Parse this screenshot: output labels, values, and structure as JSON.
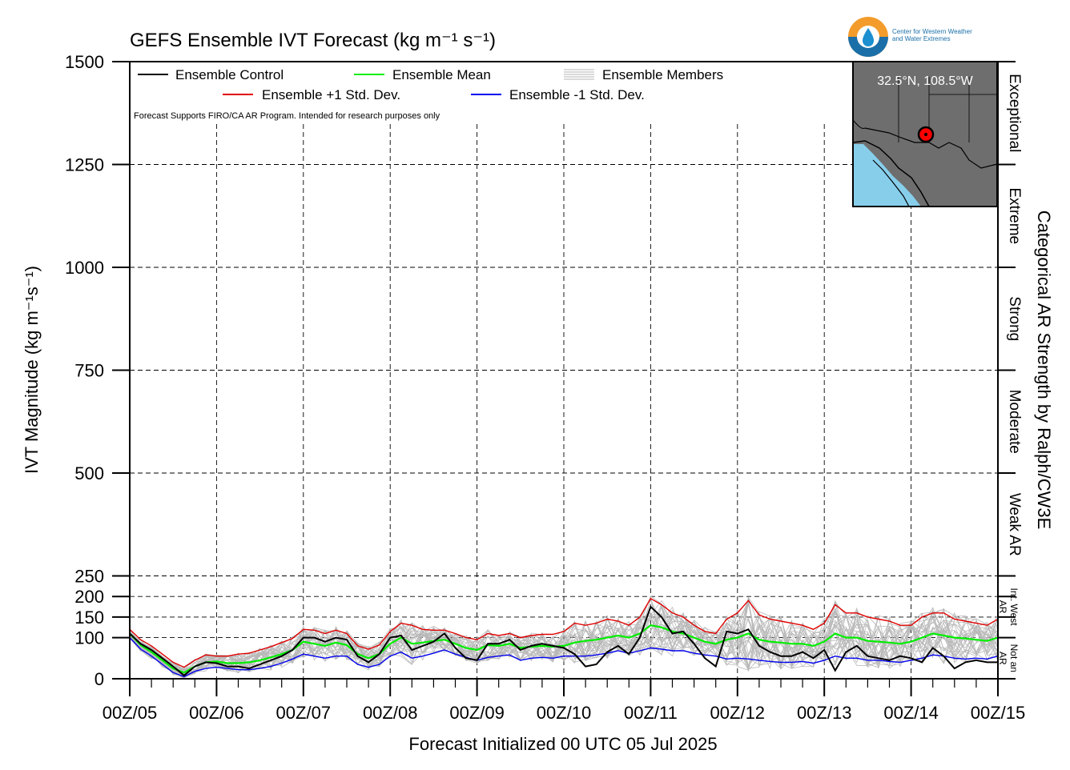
{
  "chart_data": {
    "type": "line",
    "title": "GEFS Ensemble IVT Forecast (kg m⁻¹ s⁻¹)",
    "xlabel": "Forecast Initialized 00 UTC 05 Jul 2025",
    "ylabel": "IVT Magnitude (kg m⁻¹s⁻¹)",
    "right_label": "Categorical AR Strength by Ralph/CW3E",
    "ylim": [
      0,
      1500
    ],
    "xlim_days": [
      5,
      15
    ],
    "grid": true,
    "y_ticks": [
      0,
      100,
      150,
      200,
      250,
      500,
      750,
      1000,
      1250,
      1500
    ],
    "y_tick_labels": [
      "0",
      "100",
      "150",
      "200",
      "250",
      "500",
      "750",
      "1000",
      "1250",
      "1500"
    ],
    "x_ticks": [
      5,
      6,
      7,
      8,
      9,
      10,
      11,
      12,
      13,
      14,
      15
    ],
    "x_tick_labels": [
      "00Z/05",
      "00Z/06",
      "00Z/07",
      "00Z/08",
      "00Z/09",
      "00Z/10",
      "00Z/11",
      "00Z/12",
      "00Z/13",
      "00Z/14",
      "00Z/15"
    ],
    "categories": [
      {
        "label": "Exceptional",
        "from": 1250,
        "to": 1500
      },
      {
        "label": "Extreme",
        "from": 1000,
        "to": 1250
      },
      {
        "label": "Strong",
        "from": 750,
        "to": 1000
      },
      {
        "label": "Moderate",
        "from": 500,
        "to": 750
      },
      {
        "label": "Weak AR",
        "from": 250,
        "to": 500
      },
      {
        "label": "Int. West AR",
        "from": 100,
        "to": 250
      },
      {
        "label": "Not an AR",
        "from": 0,
        "to": 100
      }
    ],
    "legend": {
      "placement": "top-left",
      "entries": [
        {
          "label": "Ensemble Control",
          "color": "#000000"
        },
        {
          "label": "Ensemble Mean",
          "color": "#00ee00"
        },
        {
          "label": "Ensemble Members",
          "color": "#aaaaaa"
        },
        {
          "label": "Ensemble +1 Std. Dev.",
          "color": "#e00000"
        },
        {
          "label": "Ensemble -1 Std. Dev.",
          "color": "#0000ee"
        }
      ]
    },
    "note": "Forecast Supports FIRO/CA AR Program. Intended for research purposes only",
    "series": [
      {
        "name": "Ensemble Control",
        "color": "#000000",
        "x": [
          5,
          5.125,
          5.25,
          5.375,
          5.5,
          5.625,
          5.75,
          5.875,
          6,
          6.125,
          6.25,
          6.375,
          6.5,
          6.625,
          6.75,
          6.875,
          7,
          7.125,
          7.25,
          7.375,
          7.5,
          7.625,
          7.75,
          7.875,
          8,
          8.125,
          8.25,
          8.375,
          8.5,
          8.625,
          8.75,
          8.875,
          9,
          9.125,
          9.25,
          9.375,
          9.5,
          9.625,
          9.75,
          9.875,
          10,
          10.125,
          10.25,
          10.375,
          10.5,
          10.625,
          10.75,
          10.875,
          11,
          11.125,
          11.25,
          11.375,
          11.5,
          11.625,
          11.75,
          11.875,
          12,
          12.125,
          12.25,
          12.375,
          12.5,
          12.625,
          12.75,
          12.875,
          13,
          13.125,
          13.25,
          13.375,
          13.5,
          13.625,
          13.75,
          13.875,
          14,
          14.125,
          14.25,
          14.375,
          14.5,
          14.625,
          14.75,
          14.875,
          15
        ],
        "values": [
          110,
          85,
          70,
          50,
          30,
          8,
          30,
          40,
          38,
          30,
          30,
          25,
          35,
          45,
          55,
          70,
          100,
          100,
          90,
          100,
          95,
          55,
          40,
          60,
          100,
          105,
          70,
          80,
          90,
          110,
          75,
          50,
          45,
          85,
          85,
          95,
          70,
          80,
          85,
          80,
          75,
          60,
          30,
          35,
          65,
          80,
          60,
          100,
          175,
          150,
          110,
          115,
          85,
          50,
          30,
          115,
          110,
          120,
          80,
          65,
          55,
          55,
          65,
          50,
          70,
          20,
          65,
          80,
          55,
          50,
          45,
          55,
          50,
          40,
          75,
          55,
          25,
          40,
          45,
          40,
          40
        ]
      },
      {
        "name": "Ensemble Mean",
        "color": "#00ee00",
        "x": [
          5,
          5.125,
          5.25,
          5.375,
          5.5,
          5.625,
          5.75,
          5.875,
          6,
          6.125,
          6.25,
          6.375,
          6.5,
          6.625,
          6.75,
          6.875,
          7,
          7.125,
          7.25,
          7.375,
          7.5,
          7.625,
          7.75,
          7.875,
          8,
          8.125,
          8.25,
          8.375,
          8.5,
          8.625,
          8.75,
          8.875,
          9,
          9.125,
          9.25,
          9.375,
          9.5,
          9.625,
          9.75,
          9.875,
          10,
          10.125,
          10.25,
          10.375,
          10.5,
          10.625,
          10.75,
          10.875,
          11,
          11.125,
          11.25,
          11.375,
          11.5,
          11.625,
          11.75,
          11.875,
          12,
          12.125,
          12.25,
          12.375,
          12.5,
          12.625,
          12.75,
          12.875,
          13,
          13.125,
          13.25,
          13.375,
          13.5,
          13.625,
          13.75,
          13.875,
          14,
          14.125,
          14.25,
          14.375,
          14.5,
          14.625,
          14.75,
          14.875,
          15
        ],
        "values": [
          110,
          82,
          65,
          45,
          25,
          15,
          30,
          40,
          42,
          38,
          38,
          40,
          45,
          52,
          60,
          70,
          90,
          85,
          80,
          88,
          82,
          60,
          50,
          60,
          85,
          100,
          85,
          88,
          92,
          95,
          85,
          75,
          70,
          82,
          80,
          85,
          75,
          78,
          80,
          78,
          80,
          88,
          92,
          95,
          100,
          105,
          100,
          110,
          130,
          125,
          115,
          110,
          100,
          90,
          85,
          95,
          100,
          110,
          95,
          90,
          88,
          85,
          85,
          80,
          90,
          110,
          100,
          100,
          92,
          90,
          88,
          85,
          90,
          100,
          110,
          105,
          100,
          98,
          95,
          92,
          100
        ]
      },
      {
        "name": "Ensemble +1 Std. Dev.",
        "color": "#e00000",
        "x": [
          5,
          5.125,
          5.25,
          5.375,
          5.5,
          5.625,
          5.75,
          5.875,
          6,
          6.125,
          6.25,
          6.375,
          6.5,
          6.625,
          6.75,
          6.875,
          7,
          7.125,
          7.25,
          7.375,
          7.5,
          7.625,
          7.75,
          7.875,
          8,
          8.125,
          8.25,
          8.375,
          8.5,
          8.625,
          8.75,
          8.875,
          9,
          9.125,
          9.25,
          9.375,
          9.5,
          9.625,
          9.75,
          9.875,
          10,
          10.125,
          10.25,
          10.375,
          10.5,
          10.625,
          10.75,
          10.875,
          11,
          11.125,
          11.25,
          11.375,
          11.5,
          11.625,
          11.75,
          11.875,
          12,
          12.125,
          12.25,
          12.375,
          12.5,
          12.625,
          12.75,
          12.875,
          13,
          13.125,
          13.25,
          13.375,
          13.5,
          13.625,
          13.75,
          13.875,
          14,
          14.125,
          14.25,
          14.375,
          14.5,
          14.625,
          14.75,
          14.875,
          15
        ],
        "values": [
          120,
          95,
          80,
          60,
          40,
          28,
          45,
          58,
          55,
          55,
          60,
          62,
          70,
          78,
          88,
          98,
          120,
          118,
          110,
          118,
          110,
          80,
          72,
          82,
          115,
          135,
          130,
          120,
          118,
          118,
          110,
          100,
          95,
          110,
          105,
          110,
          100,
          105,
          108,
          108,
          115,
          135,
          130,
          135,
          145,
          140,
          130,
          150,
          195,
          180,
          160,
          150,
          130,
          115,
          110,
          145,
          160,
          190,
          155,
          145,
          140,
          135,
          130,
          120,
          135,
          180,
          160,
          160,
          150,
          145,
          140,
          130,
          130,
          150,
          160,
          160,
          145,
          140,
          135,
          130,
          145
        ]
      },
      {
        "name": "Ensemble -1 Std. Dev.",
        "color": "#0000ee",
        "x": [
          5,
          5.125,
          5.25,
          5.375,
          5.5,
          5.625,
          5.75,
          5.875,
          6,
          6.125,
          6.25,
          6.375,
          6.5,
          6.625,
          6.75,
          6.875,
          7,
          7.125,
          7.25,
          7.375,
          7.5,
          7.625,
          7.75,
          7.875,
          8,
          8.125,
          8.25,
          8.375,
          8.5,
          8.625,
          8.75,
          8.875,
          9,
          9.125,
          9.25,
          9.375,
          9.5,
          9.625,
          9.75,
          9.875,
          10,
          10.125,
          10.25,
          10.375,
          10.5,
          10.625,
          10.75,
          10.875,
          11,
          11.125,
          11.25,
          11.375,
          11.5,
          11.625,
          11.75,
          11.875,
          12,
          12.125,
          12.25,
          12.375,
          12.5,
          12.625,
          12.75,
          12.875,
          13,
          13.125,
          13.25,
          13.375,
          13.5,
          13.625,
          13.75,
          13.875,
          14,
          14.125,
          14.25,
          14.375,
          14.5,
          14.625,
          14.75,
          14.875,
          15
        ],
        "values": [
          100,
          72,
          55,
          35,
          15,
          5,
          18,
          25,
          28,
          25,
          22,
          22,
          25,
          30,
          38,
          48,
          60,
          55,
          50,
          55,
          55,
          35,
          28,
          35,
          55,
          65,
          50,
          55,
          62,
          70,
          60,
          52,
          45,
          52,
          55,
          58,
          45,
          50,
          52,
          50,
          55,
          55,
          55,
          58,
          62,
          68,
          62,
          68,
          75,
          72,
          68,
          68,
          62,
          58,
          55,
          48,
          50,
          48,
          45,
          42,
          40,
          40,
          42,
          38,
          45,
          55,
          50,
          50,
          45,
          45,
          42,
          40,
          45,
          50,
          58,
          55,
          50,
          48,
          50,
          48,
          55
        ]
      }
    ],
    "inset_map": {
      "label": "32.5°N, 108.5°W",
      "lat": 32.5,
      "lon": -108.5,
      "land_color": "#6e6e6e",
      "water_color": "#87ceeb",
      "marker_color": "#ff0000"
    }
  },
  "logo": {
    "line1": "Center for Western Weather",
    "line2": "and Water Extremes"
  }
}
